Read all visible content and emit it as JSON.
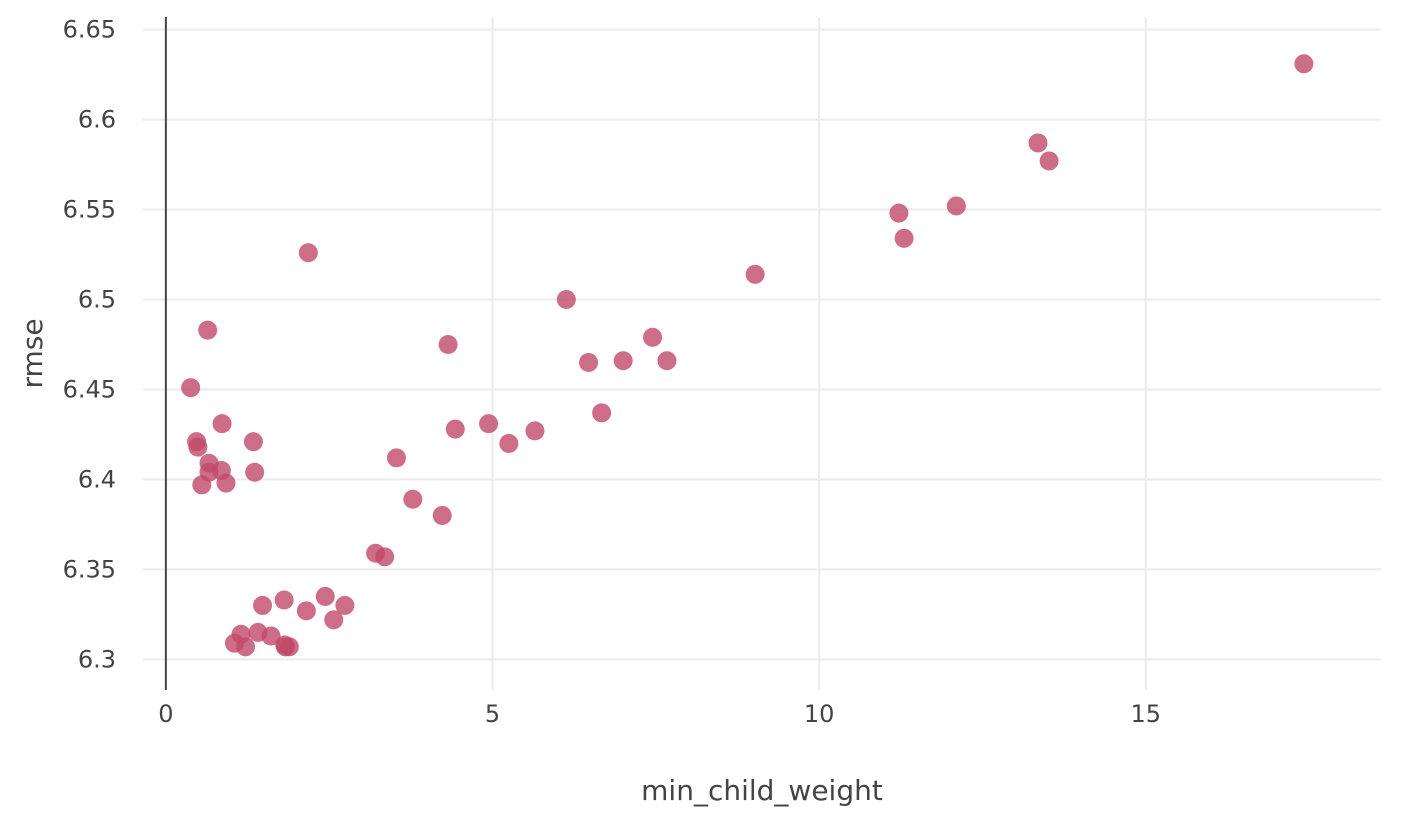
{
  "chart_data": {
    "type": "scatter",
    "title": "",
    "xlabel": "min_child_weight",
    "ylabel": "rmse",
    "xlim": [
      -0.35,
      18.6
    ],
    "ylim": [
      6.283,
      6.657
    ],
    "x_ticks": [
      0,
      5,
      10,
      15
    ],
    "y_ticks": [
      6.3,
      6.35,
      6.4,
      6.45,
      6.5,
      6.55,
      6.6,
      6.65
    ],
    "x_tick_labels": [
      "0",
      "5",
      "10",
      "15"
    ],
    "y_tick_labels": [
      "6.3",
      "6.35",
      "6.4",
      "6.45",
      "6.5",
      "6.55",
      "6.6",
      "6.65"
    ],
    "grid": true,
    "marker_color": "#c2486a",
    "marker_opacity": 0.8,
    "series": [
      {
        "x": [
          0.38,
          0.47,
          0.49,
          0.55,
          0.64,
          0.66,
          0.66,
          0.85,
          0.86,
          0.92,
          1.05,
          1.15,
          1.22,
          1.34,
          1.36,
          1.41,
          1.48,
          1.61,
          1.81,
          1.82,
          1.83,
          1.89,
          2.15,
          2.18,
          2.44,
          2.57,
          2.74,
          3.21,
          3.35,
          3.53,
          3.78,
          4.23,
          4.32,
          4.43,
          4.94,
          5.25,
          5.65,
          6.13,
          6.47,
          6.67,
          7.0,
          7.45,
          7.67,
          9.02,
          11.22,
          11.3,
          12.1,
          13.35,
          13.52,
          17.42
        ],
        "y": [
          6.451,
          6.421,
          6.418,
          6.397,
          6.483,
          6.409,
          6.404,
          6.405,
          6.431,
          6.398,
          6.309,
          6.314,
          6.307,
          6.421,
          6.404,
          6.315,
          6.33,
          6.313,
          6.333,
          6.308,
          6.307,
          6.307,
          6.327,
          6.526,
          6.335,
          6.322,
          6.33,
          6.359,
          6.357,
          6.412,
          6.389,
          6.38,
          6.475,
          6.428,
          6.431,
          6.42,
          6.427,
          6.5,
          6.465,
          6.437,
          6.466,
          6.479,
          6.466,
          6.514,
          6.548,
          6.534,
          6.552,
          6.587,
          6.577,
          6.631
        ]
      }
    ]
  }
}
